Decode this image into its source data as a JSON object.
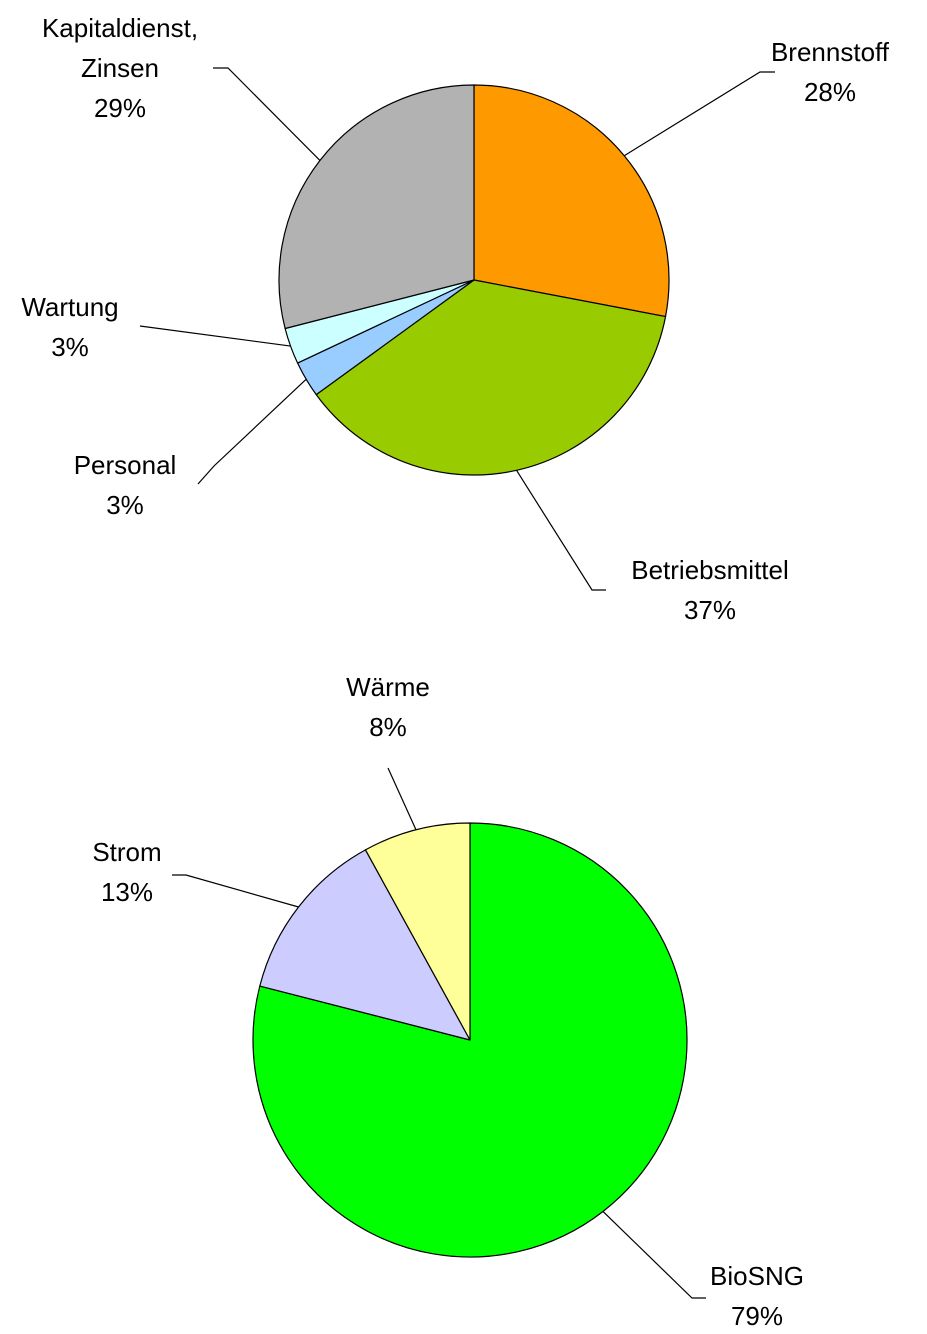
{
  "chart_data": [
    {
      "type": "pie",
      "categories": [
        "Brennstoff",
        "Betriebsmittel",
        "Personal",
        "Wartung",
        "Kapitaldienst, Zinsen"
      ],
      "values": [
        28,
        37,
        3,
        3,
        29
      ],
      "value_labels": [
        "28%",
        "37%",
        "3%",
        "3%",
        "29%"
      ],
      "colors": [
        "#FF9900",
        "#99CC00",
        "#99CCFF",
        "#CCFFFF",
        "#B2B2B2"
      ]
    },
    {
      "type": "pie",
      "categories": [
        "BioSNG",
        "Strom",
        "Wärme"
      ],
      "values": [
        79,
        13,
        8
      ],
      "value_labels": [
        "79%",
        "13%",
        "8%"
      ],
      "colors": [
        "#00FF00",
        "#CCCCFF",
        "#FFFF99"
      ]
    }
  ]
}
